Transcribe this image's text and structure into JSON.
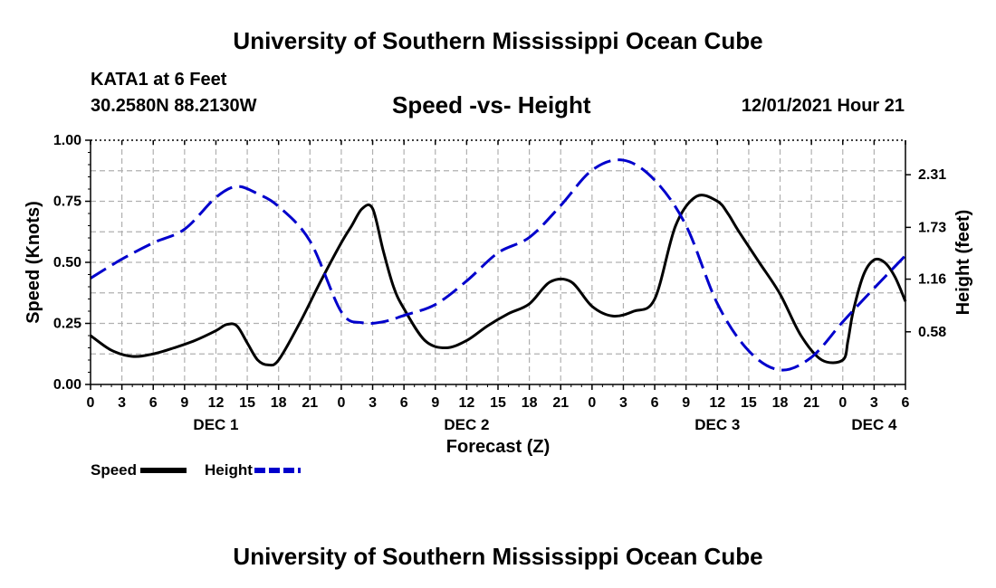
{
  "header": {
    "title": "University of Southern Mississippi Ocean Cube",
    "station": "KATA1 at 6 Feet",
    "coords": "30.2580N  88.2130W",
    "chart_title": "Speed -vs- Height",
    "datetime": "12/01/2021 Hour 21"
  },
  "footer": {
    "title": "University of Southern Mississippi Ocean Cube"
  },
  "legend": {
    "speed_label": "Speed",
    "height_label": "Height"
  },
  "colors": {
    "speed": "#000000",
    "height": "#0000cc",
    "grid": "#b0b0b0"
  },
  "chart_data": {
    "type": "line",
    "title": "Speed -vs- Height",
    "xlabel": "Forecast (Z)",
    "ylabel": "Speed (Knots)",
    "y2label": "Height (feet)",
    "ylim": [
      0,
      1
    ],
    "y2lim": [
      0,
      2.69
    ],
    "grid": true,
    "x_range_hours": [
      0,
      78
    ],
    "x_tick_hours": [
      0,
      3,
      6,
      9,
      12,
      15,
      18,
      21,
      24,
      27,
      30,
      33,
      36,
      39,
      42,
      45,
      48,
      51,
      54,
      57,
      60,
      63,
      66,
      69,
      72,
      75,
      78
    ],
    "x_tick_labels": [
      "0",
      "3",
      "6",
      "9",
      "12",
      "15",
      "18",
      "21",
      "0",
      "3",
      "6",
      "9",
      "12",
      "15",
      "18",
      "21",
      "0",
      "3",
      "6",
      "9",
      "12",
      "15",
      "18",
      "21",
      "0",
      "3",
      "6"
    ],
    "date_labels": [
      {
        "text": "DEC 1",
        "hour": 12
      },
      {
        "text": "DEC 2",
        "hour": 36
      },
      {
        "text": "DEC 3",
        "hour": 60
      },
      {
        "text": "DEC 4",
        "hour": 75
      }
    ],
    "y_ticks": [
      {
        "value": 0.0,
        "label": "0.00"
      },
      {
        "value": 0.25,
        "label": "0.25"
      },
      {
        "value": 0.5,
        "label": "0.50"
      },
      {
        "value": 0.75,
        "label": "0.75"
      },
      {
        "value": 1.0,
        "label": "1.00"
      }
    ],
    "y2_ticks": [
      {
        "value": 0.58,
        "label": "0.58"
      },
      {
        "value": 1.16,
        "label": "1.16"
      },
      {
        "value": 1.73,
        "label": "1.73"
      },
      {
        "value": 2.31,
        "label": "2.31"
      }
    ],
    "series": [
      {
        "name": "Speed",
        "axis": "left",
        "style": "solid",
        "x": [
          0,
          2,
          4,
          6,
          8,
          10,
          12,
          13,
          14,
          15,
          16,
          17,
          18,
          20,
          22,
          24,
          25,
          26,
          27,
          28,
          29,
          30,
          32,
          34,
          36,
          38,
          40,
          42,
          44,
          46,
          48,
          50,
          52,
          54,
          56,
          58,
          60,
          61,
          62,
          64,
          66,
          68,
          70,
          72,
          72.5,
          73,
          74,
          75,
          76,
          77,
          78
        ],
        "y": [
          0.2,
          0.14,
          0.115,
          0.125,
          0.15,
          0.18,
          0.22,
          0.245,
          0.24,
          0.17,
          0.1,
          0.08,
          0.1,
          0.25,
          0.42,
          0.58,
          0.65,
          0.72,
          0.72,
          0.55,
          0.4,
          0.31,
          0.18,
          0.15,
          0.18,
          0.24,
          0.29,
          0.33,
          0.42,
          0.42,
          0.32,
          0.28,
          0.3,
          0.35,
          0.65,
          0.77,
          0.75,
          0.7,
          0.63,
          0.5,
          0.37,
          0.2,
          0.1,
          0.1,
          0.18,
          0.3,
          0.45,
          0.51,
          0.5,
          0.44,
          0.34
        ]
      },
      {
        "name": "Height",
        "axis": "right",
        "style": "dashed",
        "x": [
          0,
          3,
          6,
          9,
          12,
          14,
          16,
          18,
          21,
          24,
          26,
          28,
          30,
          33,
          36,
          39,
          42,
          45,
          48,
          51,
          54,
          57,
          60,
          63,
          66,
          69,
          72,
          75,
          78
        ],
        "y": [
          1.17,
          1.38,
          1.56,
          1.71,
          2.06,
          2.18,
          2.1,
          1.96,
          1.58,
          0.8,
          0.68,
          0.69,
          0.76,
          0.88,
          1.14,
          1.45,
          1.62,
          1.97,
          2.36,
          2.47,
          2.25,
          1.75,
          0.89,
          0.37,
          0.16,
          0.3,
          0.69,
          1.06,
          1.42
        ]
      }
    ]
  }
}
